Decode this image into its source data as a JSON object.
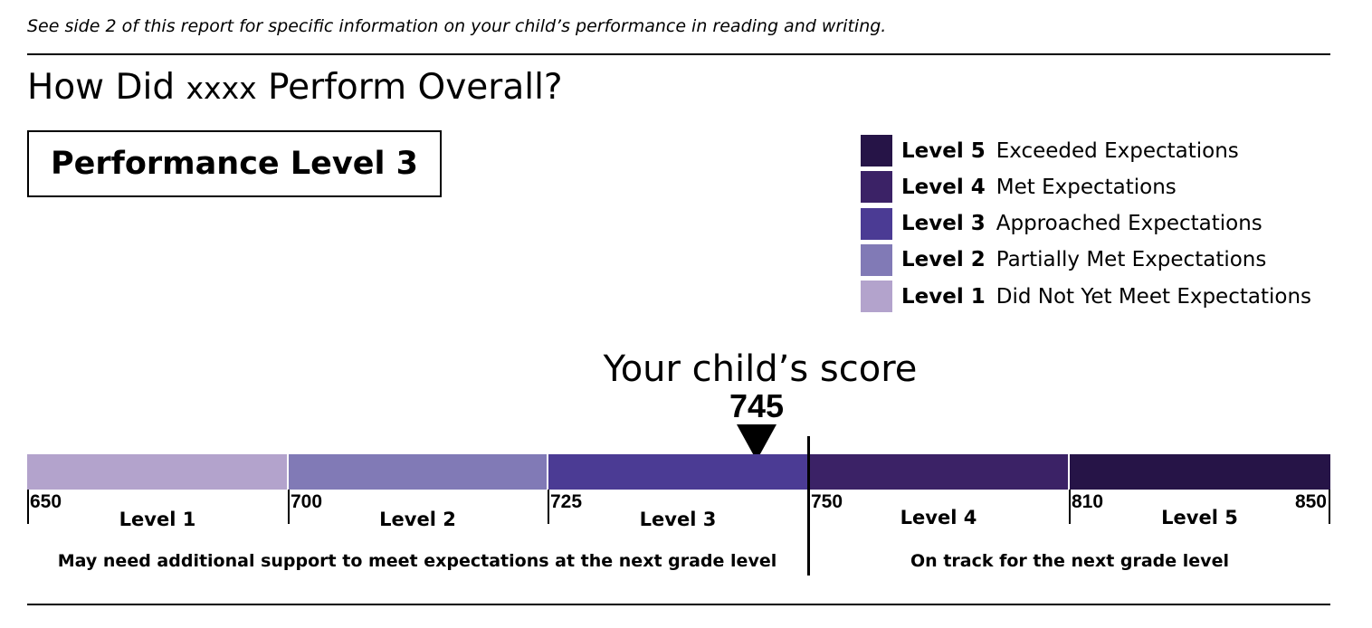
{
  "report": {
    "side_note": "See side 2 of this report for specific information on your child’s performance in reading and writing.",
    "title_prefix": "How Did",
    "student_name": "xxxx",
    "title_suffix": "Perform Overall?",
    "performance_level": "Performance Level 3"
  },
  "legend": [
    {
      "level": "Level 5",
      "description": "Exceeded Expectations",
      "color": "#261447"
    },
    {
      "level": "Level 4",
      "description": "Met Expectations",
      "color": "#3b2266"
    },
    {
      "level": "Level 3",
      "description": "Approached Expectations",
      "color": "#4b3b94"
    },
    {
      "level": "Level 2",
      "description": "Partially Met Expectations",
      "color": "#817ab6"
    },
    {
      "level": "Level 1",
      "description": "Did Not Yet Meet Expectations",
      "color": "#b3a3cc"
    }
  ],
  "score": {
    "title": "Your child’s score",
    "value": "745",
    "numeric": 745
  },
  "scale": {
    "bands": [
      {
        "label": "Level 1",
        "from": 650,
        "to": 700,
        "color": "#b3a3cc"
      },
      {
        "label": "Level 2",
        "from": 700,
        "to": 725,
        "color": "#817ab6"
      },
      {
        "label": "Level 3",
        "from": 725,
        "to": 750,
        "color": "#4b3b94"
      },
      {
        "label": "Level 4",
        "from": 750,
        "to": 810,
        "color": "#3b2266"
      },
      {
        "label": "Level 5",
        "from": 810,
        "to": 850,
        "color": "#261447"
      }
    ],
    "ticks": [
      "650",
      "700",
      "725",
      "750",
      "810",
      "850"
    ],
    "below_cut_text": "May need additional support to meet expectations at the next grade level",
    "above_cut_text": "On track for the next grade level"
  }
}
